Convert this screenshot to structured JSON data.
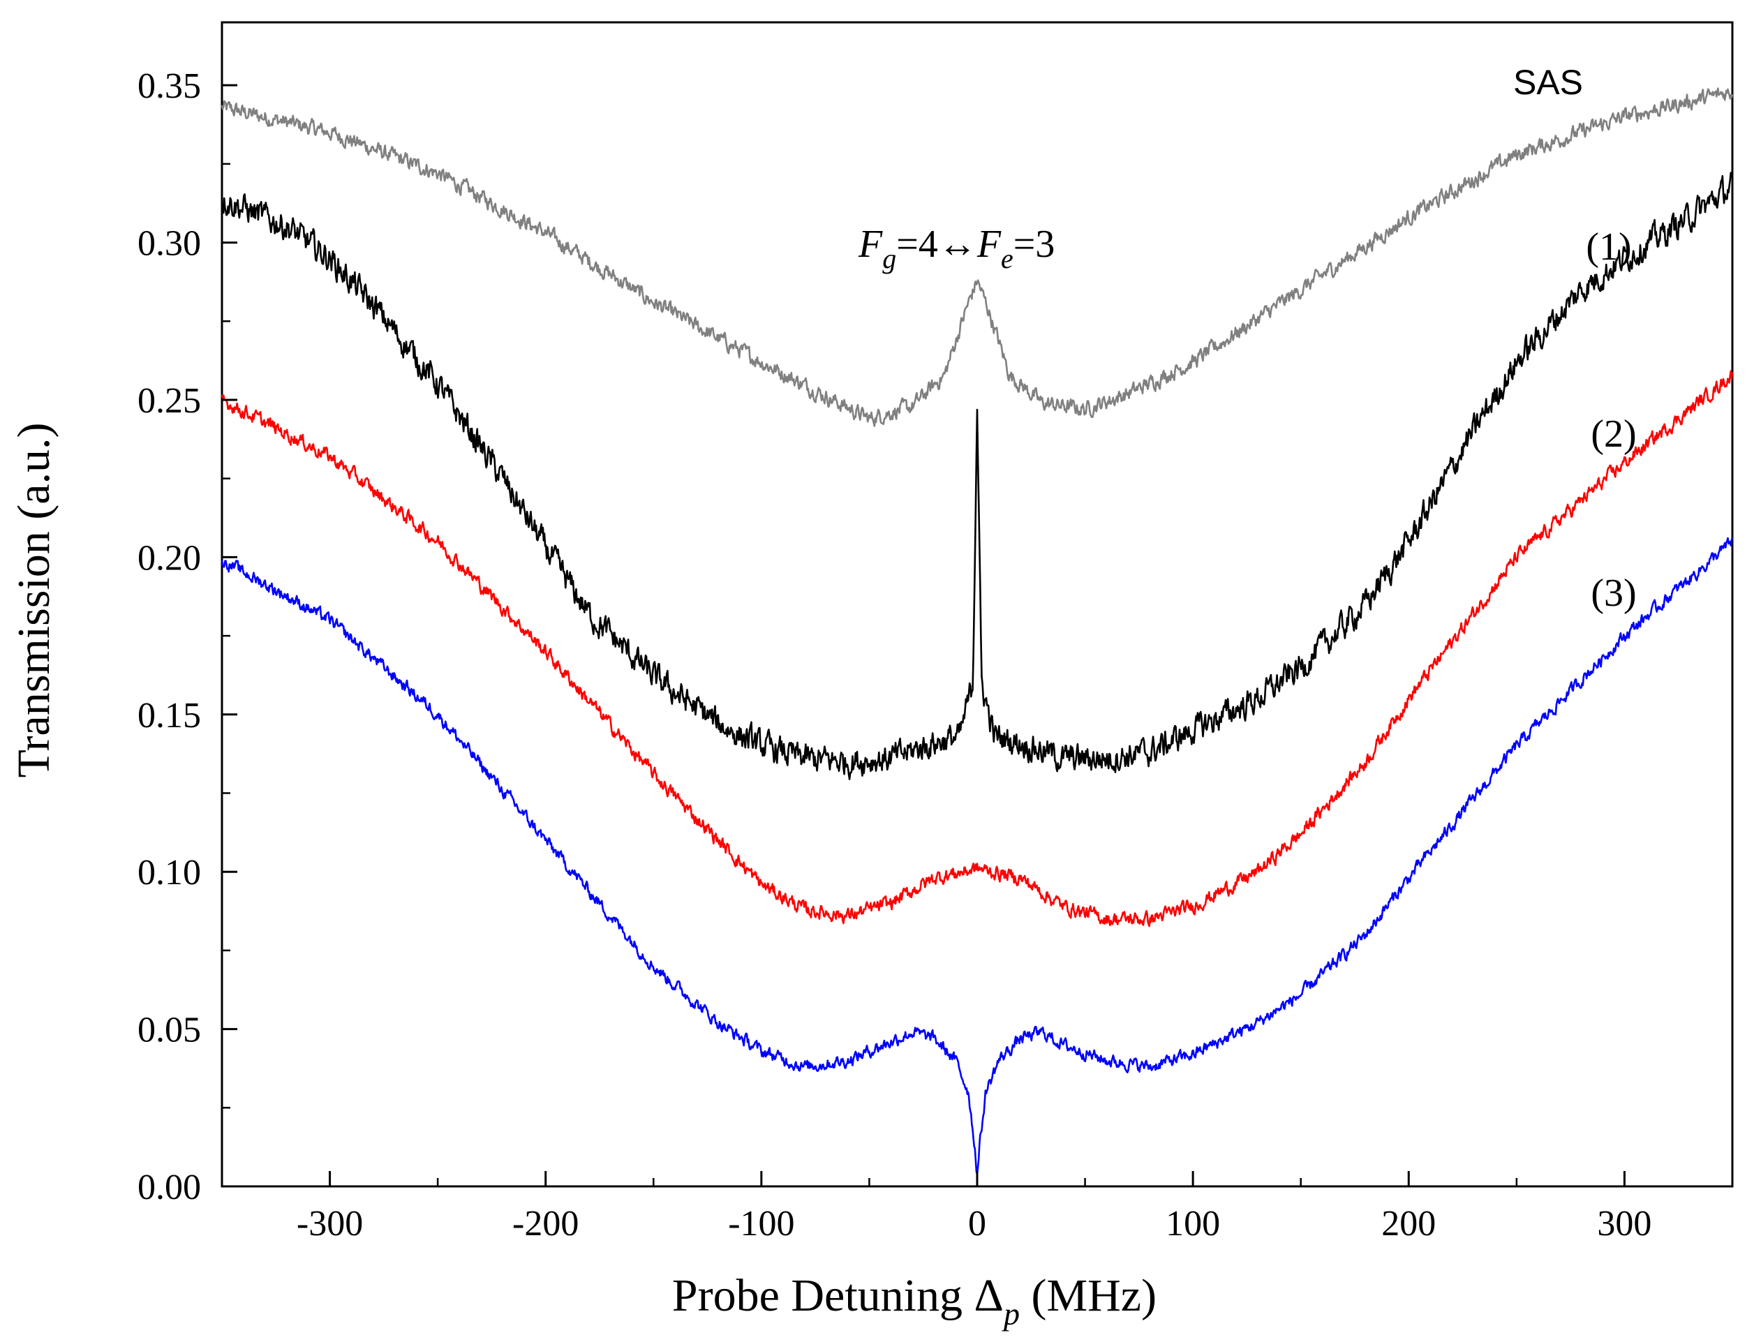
{
  "chart_data": {
    "type": "line",
    "title": "",
    "xlabel": "Probe Detuning Δp (MHz)",
    "xlabel_main": "Probe Detuning Δ",
    "xlabel_sub": "p",
    "xlabel_unit": " (MHz)",
    "ylabel": "Transmission (a.u.)",
    "xlim": [
      -350,
      350
    ],
    "ylim": [
      0,
      0.37
    ],
    "x_ticks": [
      -300,
      -200,
      -100,
      0,
      100,
      200,
      300
    ],
    "x_tick_labels": [
      "-300",
      "-200",
      "-100",
      "0",
      "100",
      "200",
      "300"
    ],
    "y_ticks": [
      0.0,
      0.05,
      0.1,
      0.15,
      0.2,
      0.25,
      0.3,
      0.35
    ],
    "y_tick_labels": [
      "0.00",
      "0.05",
      "0.10",
      "0.15",
      "0.20",
      "0.25",
      "0.30",
      "0.35"
    ],
    "x_minor_step": 50,
    "y_minor_step": 0.025,
    "series": [
      {
        "name": "SAS",
        "label": "SAS",
        "color": "#808080",
        "noise": 0.002,
        "x": [
          -350,
          -300,
          -250,
          -200,
          -150,
          -100,
          -70,
          -50,
          -30,
          -15,
          -5,
          0,
          5,
          15,
          30,
          50,
          70,
          100,
          150,
          200,
          250,
          300,
          350
        ],
        "y": [
          0.343,
          0.335,
          0.322,
          0.303,
          0.281,
          0.262,
          0.251,
          0.244,
          0.248,
          0.258,
          0.279,
          0.288,
          0.279,
          0.258,
          0.249,
          0.247,
          0.252,
          0.262,
          0.285,
          0.308,
          0.328,
          0.34,
          0.348
        ]
      },
      {
        "name": "(1)",
        "label": "(1)",
        "color": "#000000",
        "noise": 0.0035,
        "x": [
          -350,
          -320,
          -300,
          -280,
          -250,
          -220,
          -200,
          -180,
          -150,
          -120,
          -100,
          -80,
          -60,
          -40,
          -20,
          -8,
          -2,
          -1,
          0,
          1,
          2,
          8,
          20,
          40,
          60,
          80,
          100,
          130,
          150,
          180,
          200,
          230,
          250,
          280,
          300,
          330,
          350
        ],
        "y": [
          0.314,
          0.305,
          0.295,
          0.28,
          0.255,
          0.225,
          0.203,
          0.182,
          0.162,
          0.147,
          0.14,
          0.136,
          0.135,
          0.136,
          0.141,
          0.143,
          0.16,
          0.205,
          0.25,
          0.205,
          0.16,
          0.143,
          0.141,
          0.136,
          0.136,
          0.138,
          0.145,
          0.155,
          0.165,
          0.185,
          0.205,
          0.24,
          0.262,
          0.285,
          0.295,
          0.308,
          0.318
        ]
      },
      {
        "name": "(2)",
        "label": "(2)",
        "color": "#ff0000",
        "noise": 0.0018,
        "x": [
          -350,
          -300,
          -250,
          -200,
          -150,
          -100,
          -80,
          -60,
          -40,
          -20,
          0,
          20,
          40,
          60,
          80,
          100,
          130,
          150,
          180,
          200,
          250,
          300,
          350
        ],
        "y": [
          0.25,
          0.232,
          0.205,
          0.17,
          0.131,
          0.096,
          0.088,
          0.086,
          0.09,
          0.098,
          0.101,
          0.098,
          0.089,
          0.085,
          0.085,
          0.089,
          0.1,
          0.112,
          0.135,
          0.155,
          0.2,
          0.23,
          0.258
        ]
      },
      {
        "name": "(3)",
        "label": "(3)",
        "color": "#0000ff",
        "noise": 0.0016,
        "x": [
          -350,
          -300,
          -250,
          -200,
          -150,
          -120,
          -100,
          -80,
          -60,
          -40,
          -30,
          -20,
          -10,
          -4,
          -1,
          0,
          1,
          4,
          10,
          20,
          30,
          40,
          60,
          80,
          100,
          130,
          150,
          180,
          200,
          250,
          300,
          350
        ],
        "y": [
          0.199,
          0.18,
          0.15,
          0.11,
          0.07,
          0.052,
          0.043,
          0.038,
          0.04,
          0.046,
          0.049,
          0.047,
          0.04,
          0.03,
          0.012,
          0.004,
          0.012,
          0.03,
          0.04,
          0.047,
          0.049,
          0.045,
          0.04,
          0.038,
          0.042,
          0.052,
          0.061,
          0.08,
          0.098,
          0.14,
          0.175,
          0.205
        ]
      }
    ],
    "annotations": [
      {
        "name": "resonance-annotation",
        "text_parts": [
          "F",
          "g",
          "=4↔",
          "F",
          "e",
          "=3"
        ],
        "x": 0,
        "y": 0.3
      }
    ]
  }
}
